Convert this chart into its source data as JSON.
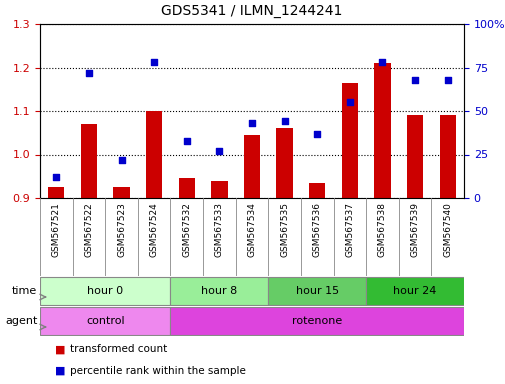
{
  "title": "GDS5341 / ILMN_1244241",
  "samples": [
    "GSM567521",
    "GSM567522",
    "GSM567523",
    "GSM567524",
    "GSM567532",
    "GSM567533",
    "GSM567534",
    "GSM567535",
    "GSM567536",
    "GSM567537",
    "GSM567538",
    "GSM567539",
    "GSM567540"
  ],
  "transformed_count": [
    0.925,
    1.07,
    0.925,
    1.1,
    0.945,
    0.94,
    1.045,
    1.06,
    0.935,
    1.165,
    1.21,
    1.09,
    1.09
  ],
  "percentile_rank": [
    12,
    72,
    22,
    78,
    33,
    27,
    43,
    44,
    37,
    55,
    78,
    68,
    68
  ],
  "bar_color": "#cc0000",
  "dot_color": "#0000cc",
  "ylim_left": [
    0.9,
    1.3
  ],
  "ylim_right": [
    0,
    100
  ],
  "yticks_left": [
    0.9,
    1.0,
    1.1,
    1.2,
    1.3
  ],
  "yticks_right": [
    0,
    25,
    50,
    75,
    100
  ],
  "ytick_labels_right": [
    "0",
    "25",
    "50",
    "75",
    "100%"
  ],
  "time_groups": [
    {
      "label": "hour 0",
      "start": 0,
      "end": 4,
      "color": "#ccffcc"
    },
    {
      "label": "hour 8",
      "start": 4,
      "end": 7,
      "color": "#99ee99"
    },
    {
      "label": "hour 15",
      "start": 7,
      "end": 10,
      "color": "#66cc66"
    },
    {
      "label": "hour 24",
      "start": 10,
      "end": 13,
      "color": "#33bb33"
    }
  ],
  "agent_groups": [
    {
      "label": "control",
      "start": 0,
      "end": 4,
      "color": "#ee88ee"
    },
    {
      "label": "rotenone",
      "start": 4,
      "end": 13,
      "color": "#dd44dd"
    }
  ],
  "legend_bar_label": "transformed count",
  "legend_dot_label": "percentile rank within the sample",
  "time_label": "time",
  "agent_label": "agent",
  "bg_color": "#ffffff",
  "grid_color": "#000000",
  "tick_label_color_left": "#cc0000",
  "tick_label_color_right": "#0000cc",
  "sample_bg_color": "#d0d0d0",
  "border_color": "#888888"
}
